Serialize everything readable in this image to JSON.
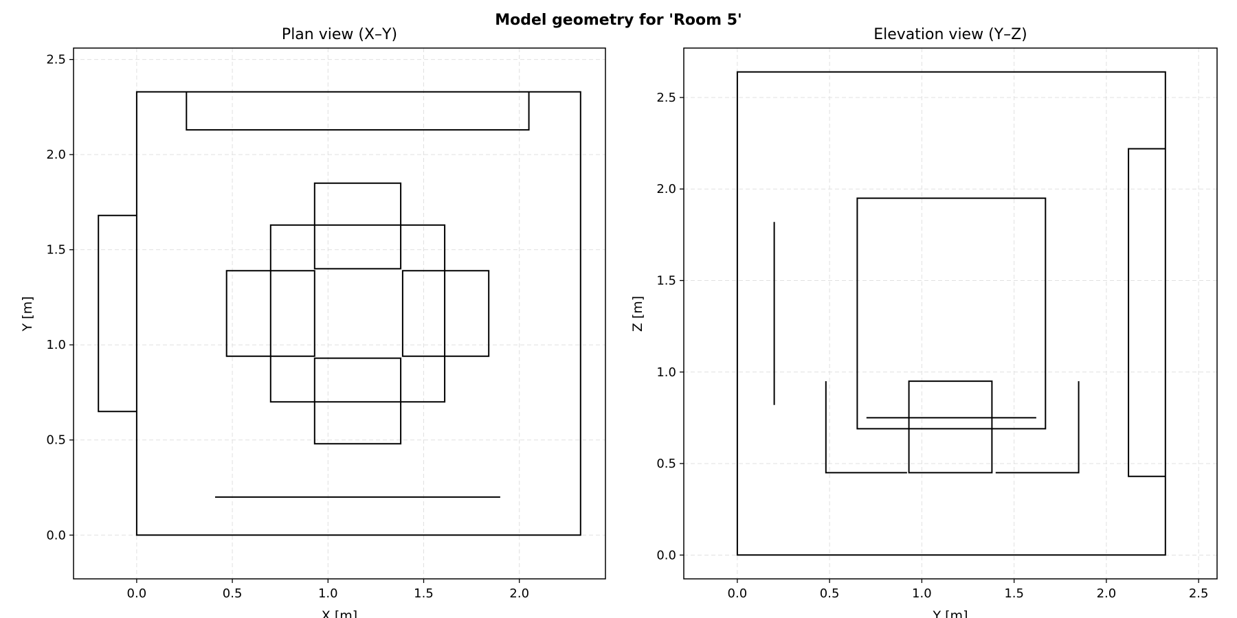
{
  "figure": {
    "title": "Model geometry for 'Room 5'"
  },
  "chart_data": [
    {
      "type": "line",
      "title": "Plan view (X–Y)",
      "xlabel": "X [m]",
      "ylabel": "Y [m]",
      "xlim": [
        -0.33,
        2.45
      ],
      "ylim": [
        -0.23,
        2.56
      ],
      "xticks": [
        0.0,
        0.5,
        1.0,
        1.5,
        2.0
      ],
      "yticks": [
        0.0,
        0.5,
        1.0,
        1.5,
        2.0,
        2.5
      ],
      "tick_labels_x": [
        "0.0",
        "0.5",
        "1.0",
        "1.5",
        "2.0"
      ],
      "tick_labels_y": [
        "0.0",
        "0.5",
        "1.0",
        "1.5",
        "2.0",
        "2.5"
      ],
      "grid": true,
      "segments": [
        {
          "name": "room-outline",
          "closed": true,
          "points": [
            [
              0,
              0
            ],
            [
              2.32,
              0
            ],
            [
              2.32,
              2.33
            ],
            [
              0,
              2.33
            ]
          ]
        },
        {
          "name": "door",
          "closed": false,
          "points": [
            [
              0,
              0.65
            ],
            [
              -0.2,
              0.65
            ],
            [
              -0.2,
              1.68
            ],
            [
              0,
              1.68
            ]
          ]
        },
        {
          "name": "wall-cabinet",
          "closed": false,
          "points": [
            [
              0.26,
              2.33
            ],
            [
              0.26,
              2.13
            ],
            [
              2.05,
              2.13
            ],
            [
              2.05,
              2.33
            ]
          ]
        },
        {
          "name": "table",
          "closed": true,
          "points": [
            [
              0.7,
              0.7
            ],
            [
              1.61,
              0.7
            ],
            [
              1.61,
              1.63
            ],
            [
              0.7,
              1.63
            ]
          ]
        },
        {
          "name": "chair-top",
          "closed": true,
          "points": [
            [
              0.93,
              1.4
            ],
            [
              1.38,
              1.4
            ],
            [
              1.38,
              1.85
            ],
            [
              0.93,
              1.85
            ]
          ]
        },
        {
          "name": "chair-bottom",
          "closed": true,
          "points": [
            [
              0.93,
              0.48
            ],
            [
              1.38,
              0.48
            ],
            [
              1.38,
              0.93
            ],
            [
              0.93,
              0.93
            ]
          ]
        },
        {
          "name": "chair-left",
          "closed": true,
          "points": [
            [
              0.47,
              0.94
            ],
            [
              0.93,
              0.94
            ],
            [
              0.93,
              1.39
            ],
            [
              0.47,
              1.39
            ]
          ]
        },
        {
          "name": "chair-right",
          "closed": true,
          "points": [
            [
              1.39,
              0.94
            ],
            [
              1.84,
              0.94
            ],
            [
              1.84,
              1.39
            ],
            [
              1.39,
              1.39
            ]
          ]
        },
        {
          "name": "window-line",
          "closed": false,
          "points": [
            [
              0.41,
              0.2
            ],
            [
              1.9,
              0.2
            ]
          ]
        }
      ]
    },
    {
      "type": "line",
      "title": "Elevation view (Y–Z)",
      "xlabel": "Y [m]",
      "ylabel": "Z [m]",
      "xlim": [
        -0.29,
        2.6
      ],
      "ylim": [
        -0.13,
        2.77
      ],
      "xticks": [
        0.0,
        0.5,
        1.0,
        1.5,
        2.0,
        2.5
      ],
      "yticks": [
        0.0,
        0.5,
        1.0,
        1.5,
        2.0,
        2.5
      ],
      "tick_labels_x": [
        "0.0",
        "0.5",
        "1.0",
        "1.5",
        "2.0",
        "2.5"
      ],
      "tick_labels_y": [
        "0.0",
        "0.5",
        "1.0",
        "1.5",
        "2.0",
        "2.5"
      ],
      "grid": true,
      "segments": [
        {
          "name": "room-outline",
          "closed": true,
          "points": [
            [
              0,
              0
            ],
            [
              2.32,
              0
            ],
            [
              2.32,
              2.64
            ],
            [
              0,
              2.64
            ]
          ]
        },
        {
          "name": "window-edge",
          "closed": false,
          "points": [
            [
              0.2,
              0.82
            ],
            [
              0.2,
              1.82
            ]
          ]
        },
        {
          "name": "chair-left-profile",
          "closed": false,
          "points": [
            [
              0.48,
              0.95
            ],
            [
              0.48,
              0.45
            ],
            [
              0.92,
              0.45
            ]
          ]
        },
        {
          "name": "table-body",
          "closed": true,
          "points": [
            [
              0.65,
              0.69
            ],
            [
              1.67,
              0.69
            ],
            [
              1.67,
              1.95
            ],
            [
              0.65,
              1.95
            ]
          ]
        },
        {
          "name": "table-top-line",
          "closed": false,
          "points": [
            [
              0.7,
              0.75
            ],
            [
              1.62,
              0.75
            ]
          ]
        },
        {
          "name": "chair-center",
          "closed": true,
          "points": [
            [
              0.93,
              0.45
            ],
            [
              1.38,
              0.45
            ],
            [
              1.38,
              0.95
            ],
            [
              0.93,
              0.95
            ]
          ]
        },
        {
          "name": "chair-right-profile",
          "closed": false,
          "points": [
            [
              1.4,
              0.45
            ],
            [
              1.85,
              0.45
            ],
            [
              1.85,
              0.95
            ]
          ]
        },
        {
          "name": "door-profile",
          "closed": false,
          "points": [
            [
              2.32,
              0.43
            ],
            [
              2.12,
              0.43
            ],
            [
              2.12,
              2.22
            ],
            [
              2.32,
              2.22
            ]
          ]
        }
      ]
    }
  ]
}
